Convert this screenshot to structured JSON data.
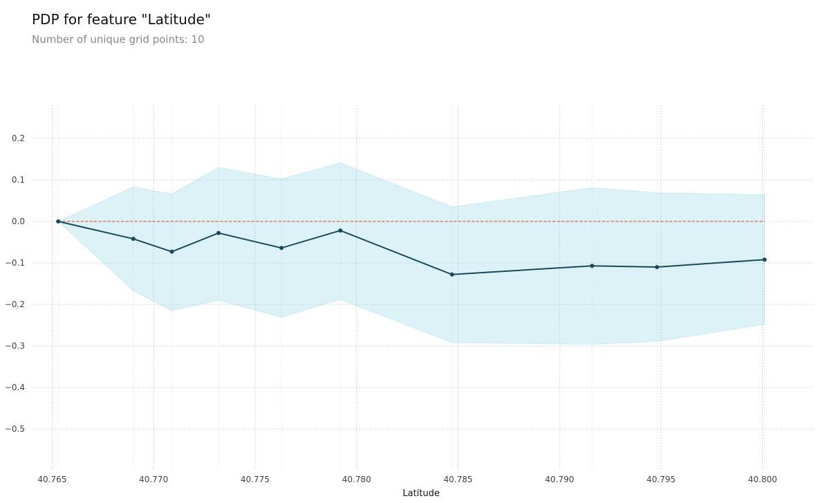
{
  "chart_data": {
    "type": "line",
    "title": "PDP for feature \"Latitude\"",
    "subtitle": "Number of unique grid points: 10",
    "xlabel": "Latitude",
    "ylabel": "",
    "x": [
      40.7653,
      40.769,
      40.7709,
      40.7732,
      40.7763,
      40.7792,
      40.7847,
      40.7916,
      40.7948,
      40.8001
    ],
    "series": [
      {
        "values": [
          0.0,
          -0.042,
          -0.073,
          -0.028,
          -0.064,
          -0.022,
          -0.128,
          -0.107,
          -0.11,
          -0.092
        ],
        "upper": [
          0.0,
          0.083,
          0.066,
          0.13,
          0.102,
          0.141,
          0.035,
          0.081,
          0.069,
          0.064
        ],
        "lower": [
          0.0,
          -0.167,
          -0.215,
          -0.19,
          -0.231,
          -0.188,
          -0.292,
          -0.296,
          -0.289,
          -0.248
        ]
      }
    ],
    "reference_line": 0,
    "xlim": [
      40.764,
      40.8025
    ],
    "ylim": [
      -0.6,
      0.28
    ],
    "xticks": [
      "40.765",
      "40.770",
      "40.775",
      "40.780",
      "40.785",
      "40.790",
      "40.795",
      "40.800"
    ],
    "xtick_values": [
      40.765,
      40.77,
      40.775,
      40.78,
      40.785,
      40.79,
      40.795,
      40.8
    ],
    "yticks": [
      "0.2",
      "0.1",
      "0.0",
      "−0.1",
      "−0.2",
      "−0.3",
      "−0.4",
      "−0.5"
    ],
    "ytick_values": [
      0.2,
      0.1,
      0.0,
      -0.1,
      -0.2,
      -0.3,
      -0.4,
      -0.5
    ],
    "grid": true,
    "colors": {
      "line": "#1a4a5a",
      "band": "#66c2d7",
      "reference": "#e45c3a",
      "grid": "#c8c8c8"
    }
  }
}
